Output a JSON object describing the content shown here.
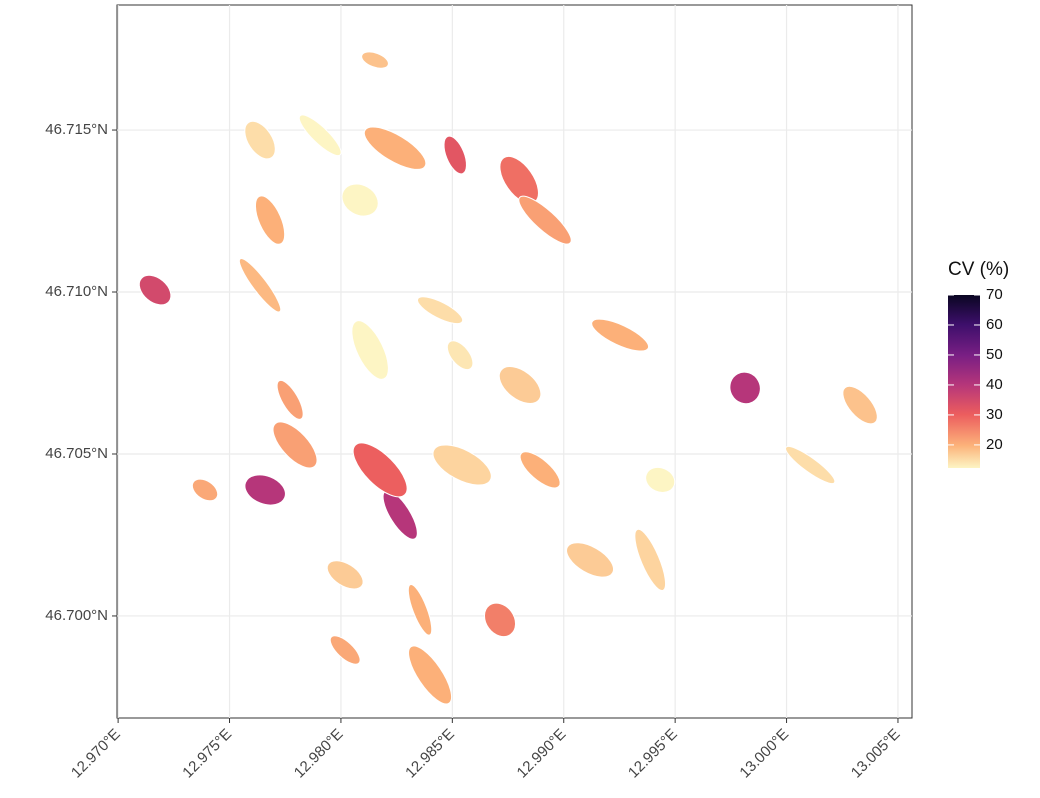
{
  "chart_data": {
    "type": "map",
    "legend_title": "CV (%)",
    "xlim": [
      12.96995,
      13.00563
    ],
    "ylim": [
      46.69685,
      46.71886
    ],
    "xticks": [
      {
        "value": 12.97,
        "label": "12.970°E"
      },
      {
        "value": 12.975,
        "label": "12.975°E"
      },
      {
        "value": 12.98,
        "label": "12.980°E"
      },
      {
        "value": 12.985,
        "label": "12.985°E"
      },
      {
        "value": 12.99,
        "label": "12.990°E"
      },
      {
        "value": 12.995,
        "label": "12.995°E"
      },
      {
        "value": 13.0,
        "label": "13.000°E"
      },
      {
        "value": 13.005,
        "label": "13.005°E"
      }
    ],
    "yticks": [
      {
        "value": 46.7,
        "label": "46.700°N"
      },
      {
        "value": 46.705,
        "label": "46.705°N"
      },
      {
        "value": 46.71,
        "label": "46.710°N"
      },
      {
        "value": 46.715,
        "label": "46.715°N"
      }
    ],
    "grid": true,
    "colorbar_lim": [
      12.3,
      70
    ],
    "colorbar_ticks": [
      20,
      30,
      40,
      50,
      60,
      70
    ],
    "features": [
      {
        "lon": 12.98153,
        "lat": 46.71716,
        "cv": 18
      },
      {
        "lon": 12.97637,
        "lat": 46.71469,
        "cv": 15
      },
      {
        "lon": 12.97907,
        "lat": 46.71484,
        "cv": 12
      },
      {
        "lon": 12.98243,
        "lat": 46.71444,
        "cv": 20
      },
      {
        "lon": 12.98513,
        "lat": 46.71423,
        "cv": 32
      },
      {
        "lon": 12.988,
        "lat": 46.71346,
        "cv": 28
      },
      {
        "lon": 12.98916,
        "lat": 46.71222,
        "cv": 22
      },
      {
        "lon": 12.98086,
        "lat": 46.71284,
        "cv": 12
      },
      {
        "lon": 12.97682,
        "lat": 46.71222,
        "cv": 20
      },
      {
        "lon": 12.97637,
        "lat": 46.71021,
        "cv": 19
      },
      {
        "lon": 12.97166,
        "lat": 46.71006,
        "cv": 35
      },
      {
        "lon": 12.98445,
        "lat": 46.70944,
        "cv": 15
      },
      {
        "lon": 12.98131,
        "lat": 46.70821,
        "cv": 11
      },
      {
        "lon": 12.98535,
        "lat": 46.70805,
        "cv": 14
      },
      {
        "lon": 12.98804,
        "lat": 46.70713,
        "cv": 17
      },
      {
        "lon": 12.99253,
        "lat": 46.70867,
        "cv": 20
      },
      {
        "lon": 12.99814,
        "lat": 46.70704,
        "cv": 40
      },
      {
        "lon": 13.0033,
        "lat": 46.70651,
        "cv": 18
      },
      {
        "lon": 13.00106,
        "lat": 46.70466,
        "cv": 15
      },
      {
        "lon": 12.99433,
        "lat": 46.7042,
        "cv": 12
      },
      {
        "lon": 12.97772,
        "lat": 46.70667,
        "cv": 22
      },
      {
        "lon": 12.97794,
        "lat": 46.70528,
        "cv": 22
      },
      {
        "lon": 12.9739,
        "lat": 46.70389,
        "cv": 21
      },
      {
        "lon": 12.9766,
        "lat": 46.70389,
        "cv": 40
      },
      {
        "lon": 12.98266,
        "lat": 46.70312,
        "cv": 40
      },
      {
        "lon": 12.98176,
        "lat": 46.70451,
        "cv": 30
      },
      {
        "lon": 12.98019,
        "lat": 46.70127,
        "cv": 17
      },
      {
        "lon": 12.98355,
        "lat": 46.70019,
        "cv": 20
      },
      {
        "lon": 12.984,
        "lat": 46.69818,
        "cv": 20
      },
      {
        "lon": 12.98019,
        "lat": 46.69895,
        "cv": 21
      },
      {
        "lon": 12.99118,
        "lat": 46.70173,
        "cv": 17
      },
      {
        "lon": 12.99388,
        "lat": 46.70173,
        "cv": 16
      },
      {
        "lon": 12.98714,
        "lat": 46.69988,
        "cv": 26
      },
      {
        "lon": 12.98894,
        "lat": 46.70451,
        "cv": 20
      },
      {
        "lon": 12.98544,
        "lat": 46.70466,
        "cv": 16
      }
    ]
  }
}
